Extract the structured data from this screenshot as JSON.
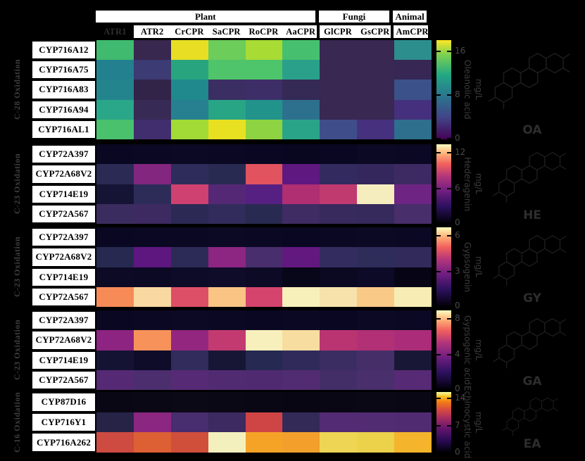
{
  "figure": {
    "background": "#000000"
  },
  "header": {
    "groups": [
      {
        "label": "Plant",
        "span": 6
      },
      {
        "label": "Fungi",
        "span": 2
      },
      {
        "label": "Animal",
        "span": 1
      }
    ],
    "columns": [
      "ATR1",
      "ATR2",
      "CrCPR",
      "SaCPR",
      "RoCPR",
      "AaCPR",
      "GlCPR",
      "GsCPR",
      "AmCPR"
    ]
  },
  "panels": [
    {
      "side_label": "C-28 Oxidation",
      "rows": [
        "CYP716A12",
        "CYP716A75",
        "CYP716A83",
        "CYP716A94",
        "CYP716AL1"
      ],
      "cells": [
        [
          "#3fba6f",
          "#38274e",
          "#e8df25",
          "#6ccd5a",
          "#a8db34",
          "#46c06e",
          "#382852",
          "#382852",
          "#2d8f8d"
        ],
        [
          "#23808f",
          "#3c3b74",
          "#28a57f",
          "#50c46a",
          "#4ec46b",
          "#2aa08a",
          "#382852",
          "#382852",
          "#372754"
        ],
        [
          "#24848d",
          "#322349",
          "#20898d",
          "#3a2e62",
          "#3d2e68",
          "#342a55",
          "#382852",
          "#382852",
          "#3a5289"
        ],
        [
          "#2aa689",
          "#372a55",
          "#26808f",
          "#28a584",
          "#21938b",
          "#2d708d",
          "#382852",
          "#382852",
          "#45307d"
        ],
        [
          "#4ac16d",
          "#412e6e",
          "#a2da36",
          "#e7e122",
          "#8ed442",
          "#2aa488",
          "#3f4e8a",
          "#46317e",
          "#2e6f8d"
        ]
      ],
      "colorbar": {
        "colormap": "cb-viridis",
        "ticks": [
          "16",
          "8",
          "0"
        ],
        "label": "Oleanolic acid",
        "unit": "mg/L"
      },
      "structure_label": "OA"
    },
    {
      "side_label": "C-23 Oxidation",
      "rows": [
        "CYP72A397",
        "CYP72A68V2",
        "CYP714E19",
        "CYP72A567"
      ],
      "cells": [
        [
          "#0a0722",
          "#0b0823",
          "#0c0924",
          "#0b0823",
          "#0a0722",
          "#090620",
          "#0a0722",
          "#0c0924",
          "#0b0823"
        ],
        [
          "#2a2a54",
          "#83267f",
          "#2e2c5a",
          "#292a52",
          "#e0535f",
          "#5f187f",
          "#332a60",
          "#34275c",
          "#3d2a63"
        ],
        [
          "#151434",
          "#2d2c58",
          "#cf4170",
          "#552876",
          "#552082",
          "#b02e72",
          "#c03a70",
          "#f5edbe",
          "#6e2482"
        ],
        [
          "#3b2c5f",
          "#3d2a61",
          "#2c2a55",
          "#312c5c",
          "#292a51",
          "#3e2c63",
          "#382a5d",
          "#36295b",
          "#482e6b"
        ]
      ],
      "colorbar": {
        "colormap": "cb-magma",
        "ticks": [
          "12",
          "6",
          "0"
        ],
        "label": "Hederagenin",
        "unit": "mg/L"
      },
      "structure_label": "HE"
    },
    {
      "side_label": "C-23 Oxidation",
      "rows": [
        "CYP72A397",
        "CYP72A68V2",
        "CYP714E19",
        "CYP72A567"
      ],
      "cells": [
        [
          "#0a0722",
          "#0b0823",
          "#0b0823",
          "#0c0924",
          "#0b0823",
          "#0a0722",
          "#0b0823",
          "#0c0924",
          "#0b0823"
        ],
        [
          "#272951",
          "#5d177e",
          "#2c2b57",
          "#8d2582",
          "#482e6c",
          "#62197f",
          "#332c5f",
          "#2e2c59",
          "#312a5b"
        ],
        [
          "#0d0a26",
          "#0c0925",
          "#0e0b28",
          "#0f0c2a",
          "#0d0a26",
          "#080619",
          "#0b0921",
          "#0c0a27",
          "#070515"
        ],
        [
          "#f68b57",
          "#f9d8a2",
          "#dd4f66",
          "#f9c484",
          "#d5446d",
          "#f8f0ba",
          "#f7e2ac",
          "#f9c987",
          "#f7edb4"
        ]
      ],
      "colorbar": {
        "colormap": "cb-magma",
        "ticks": [
          "6",
          "3",
          "0"
        ],
        "label": "Gypsogenin",
        "unit": "mg/L"
      },
      "structure_label": "GY"
    },
    {
      "side_label": "C-23 Oxidation",
      "rows": [
        "CYP72A397",
        "CYP72A68V2",
        "CYP714E19",
        "CYP72A567"
      ],
      "cells": [
        [
          "#0a0722",
          "#0b0823",
          "#0c0924",
          "#0b0823",
          "#0a0722",
          "#0b0823",
          "#0a0722",
          "#0c0924",
          "#0b0823"
        ],
        [
          "#8d2481",
          "#f8925b",
          "#93267e",
          "#c33a71",
          "#f8f0bc",
          "#f7dda0",
          "#ba3471",
          "#b23075",
          "#ab2d79"
        ],
        [
          "#141333",
          "#0e0c29",
          "#312c5c",
          "#171635",
          "#262951",
          "#302a5b",
          "#3b2d61",
          "#462f69",
          "#191736"
        ],
        [
          "#552974",
          "#4c2d6e",
          "#572a75",
          "#512b71",
          "#502a70",
          "#522c72",
          "#442e68",
          "#492f6c",
          "#562a74"
        ]
      ],
      "colorbar": {
        "colormap": "cb-magma",
        "ticks": [
          "8",
          "4",
          "0"
        ],
        "label": "Gypsogenic acid",
        "unit": "mg/L"
      },
      "structure_label": "GA"
    },
    {
      "side_label": "C-16 Oxidation",
      "rows": [
        "CYP87D16",
        "CYP716Y1",
        "CYP716A262"
      ],
      "cells": [
        [
          "#0a0714",
          "#0b0815",
          "#0c0916",
          "#0b0815",
          "#0a0714",
          "#090613",
          "#0a0714",
          "#0b0815",
          "#0a0714"
        ],
        [
          "#262347",
          "#8b2681",
          "#482d6f",
          "#3c2a61",
          "#cf4545",
          "#332a58",
          "#532b74",
          "#522c73",
          "#502b72"
        ],
        [
          "#cd4b40",
          "#dc6033",
          "#d04f3b",
          "#f4f0bd",
          "#f5a327",
          "#f2a02b",
          "#eed553",
          "#ecd14b",
          "#f4b42c"
        ]
      ],
      "colorbar": {
        "colormap": "cb-inferno",
        "ticks": [
          "14",
          "7",
          "0"
        ],
        "label": "Echinocystic acid",
        "unit": "mg/L"
      },
      "structure_label": "EA"
    }
  ],
  "chart_data": [
    {
      "type": "heatmap",
      "title": "Oleanolic acid (mg/L), C-28 Oxidation",
      "x": [
        "ATR1",
        "ATR2",
        "CrCPR",
        "SaCPR",
        "RoCPR",
        "AaCPR",
        "GlCPR",
        "GsCPR",
        "AmCPR"
      ],
      "y": [
        "CYP716A12",
        "CYP716A75",
        "CYP716A83",
        "CYP716A94",
        "CYP716AL1"
      ],
      "values": [
        [
          12.5,
          1.5,
          17.5,
          13.5,
          15.5,
          13,
          1.5,
          1.5,
          9
        ],
        [
          8,
          3,
          10.5,
          13,
          13,
          10,
          1.5,
          1.5,
          2
        ],
        [
          8.5,
          1.3,
          9,
          2.5,
          2.8,
          2,
          1.5,
          1.5,
          4.5
        ],
        [
          10.5,
          2,
          8,
          10.5,
          9.5,
          7,
          1.5,
          1.5,
          3
        ],
        [
          13,
          2.5,
          15.5,
          17,
          15,
          10.5,
          4.5,
          3,
          7
        ]
      ],
      "colormap": "viridis",
      "colorbar_ticks": [
        16,
        8,
        0
      ],
      "vmin": 0,
      "vmax": 18
    },
    {
      "type": "heatmap",
      "title": "Hederagenin (mg/L), C-23 Oxidation",
      "x": [
        "ATR1",
        "ATR2",
        "CrCPR",
        "SaCPR",
        "RoCPR",
        "AaCPR",
        "GlCPR",
        "GsCPR",
        "AmCPR"
      ],
      "y": [
        "CYP72A397",
        "CYP72A68V2",
        "CYP714E19",
        "CYP72A567"
      ],
      "values": [
        [
          0.2,
          0.2,
          0.2,
          0.2,
          0.2,
          0.2,
          0.2,
          0.2,
          0.2
        ],
        [
          2.2,
          6.5,
          2.3,
          2.2,
          10.3,
          5,
          2.6,
          2.5,
          2.9
        ],
        [
          1,
          2.3,
          9.5,
          4.3,
          4.4,
          8,
          8.6,
          13.2,
          5.3
        ],
        [
          2.9,
          3,
          2.3,
          2.5,
          2.1,
          3,
          2.8,
          2.7,
          3.3
        ]
      ],
      "colormap": "magma",
      "colorbar_ticks": [
        12,
        6,
        0
      ],
      "vmin": 0,
      "vmax": 13.5
    },
    {
      "type": "heatmap",
      "title": "Gypsogenin (mg/L), C-23 Oxidation",
      "x": [
        "ATR1",
        "ATR2",
        "CrCPR",
        "SaCPR",
        "RoCPR",
        "AaCPR",
        "GlCPR",
        "GsCPR",
        "AmCPR"
      ],
      "y": [
        "CYP72A397",
        "CYP72A68V2",
        "CYP714E19",
        "CYP72A567"
      ],
      "values": [
        [
          0.1,
          0.1,
          0.1,
          0.1,
          0.1,
          0.1,
          0.1,
          0.1,
          0.1
        ],
        [
          1,
          2.5,
          1.1,
          3.4,
          1.7,
          2.6,
          1.2,
          1.1,
          1.2
        ],
        [
          0.2,
          0.2,
          0.2,
          0.25,
          0.2,
          0.1,
          0.15,
          0.2,
          0.1
        ],
        [
          5.3,
          6.1,
          4.7,
          5.8,
          4.5,
          6.6,
          6.3,
          5.9,
          6.5
        ]
      ],
      "colormap": "magma",
      "colorbar_ticks": [
        6,
        3,
        0
      ],
      "vmin": 0,
      "vmax": 6.75
    },
    {
      "type": "heatmap",
      "title": "Gypsogenic acid (mg/L), C-23 Oxidation",
      "x": [
        "ATR1",
        "ATR2",
        "CrCPR",
        "SaCPR",
        "RoCPR",
        "AaCPR",
        "GlCPR",
        "GsCPR",
        "AmCPR"
      ],
      "y": [
        "CYP72A397",
        "CYP72A68V2",
        "CYP714E19",
        "CYP72A567"
      ],
      "values": [
        [
          0.1,
          0.1,
          0.1,
          0.1,
          0.1,
          0.1,
          0.1,
          0.1,
          0.1
        ],
        [
          4.5,
          7.3,
          4.6,
          5.9,
          8.8,
          8.3,
          5.6,
          5.4,
          5.2
        ],
        [
          0.7,
          0.5,
          1.6,
          0.8,
          1.3,
          1.6,
          1.9,
          2.2,
          0.9
        ],
        [
          2.7,
          2.4,
          2.8,
          2.6,
          2.5,
          2.6,
          2.2,
          2.3,
          2.7
        ]
      ],
      "colormap": "magma",
      "colorbar_ticks": [
        8,
        4,
        0
      ],
      "vmin": 0,
      "vmax": 9
    },
    {
      "type": "heatmap",
      "title": "Echinocystic acid (mg/L), C-16 Oxidation",
      "x": [
        "ATR1",
        "ATR2",
        "CrCPR",
        "SaCPR",
        "RoCPR",
        "AaCPR",
        "GlCPR",
        "GsCPR",
        "AmCPR"
      ],
      "y": [
        "CYP87D16",
        "CYP716Y1",
        "CYP716A262"
      ],
      "values": [
        [
          0.2,
          0.2,
          0.2,
          0.2,
          0.2,
          0.2,
          0.2,
          0.2,
          0.2
        ],
        [
          2.5,
          7.5,
          4.2,
          3.5,
          11,
          3,
          4.6,
          4.5,
          4.4
        ],
        [
          11,
          11.8,
          11.2,
          15.5,
          13.3,
          13.2,
          14.8,
          14.6,
          13.8
        ]
      ],
      "colormap": "inferno",
      "colorbar_ticks": [
        14,
        7,
        0
      ],
      "vmin": 0,
      "vmax": 15.8
    }
  ]
}
